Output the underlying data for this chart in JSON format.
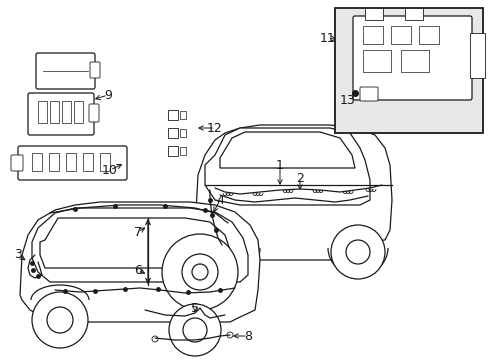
{
  "background_color": "#ffffff",
  "line_color": "#1a1a1a",
  "label_color": "#000000",
  "fig_width": 4.89,
  "fig_height": 3.6,
  "dpi": 100,
  "font_size": 9,
  "inset_bg": "#e8e8e8",
  "inset_border": "#000000"
}
